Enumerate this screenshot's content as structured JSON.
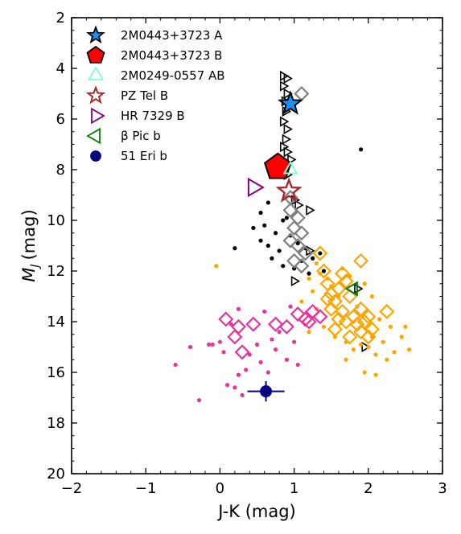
{
  "chart_data": {
    "type": "scatter",
    "xlabel": "J-K (mag)",
    "ylabel_main": "M",
    "ylabel_sub": "J",
    "ylabel_unit": "(mag)",
    "xlim": [
      -2,
      3
    ],
    "ylim": [
      20,
      2
    ],
    "xticks": [
      -2,
      -1,
      0,
      1,
      2,
      3
    ],
    "xtick_labels": [
      "−2",
      "−1",
      "0",
      "1",
      "2",
      "3"
    ],
    "yticks": [
      2,
      4,
      6,
      8,
      10,
      12,
      14,
      16,
      18,
      20
    ],
    "ytick_labels": [
      "2",
      "4",
      "6",
      "8",
      "10",
      "12",
      "14",
      "16",
      "18",
      "20"
    ],
    "legend_position": "top-left",
    "legend": [
      {
        "label": "2M0443+3723 A",
        "marker": "star",
        "color": "#1f8fff",
        "edge": "#000000"
      },
      {
        "label": "2M0443+3723 B",
        "marker": "pentagon",
        "color": "#ff0000",
        "edge": "#000000"
      },
      {
        "label": "2M0249-0557 AB",
        "marker": "triangle-up",
        "color": "none",
        "edge": "#7fffd4"
      },
      {
        "label": "PZ Tel B",
        "marker": "star",
        "color": "none",
        "edge": "#a52a2a"
      },
      {
        "label": "HR 7329 B",
        "marker": "triangle-right",
        "color": "none",
        "edge": "#800080"
      },
      {
        "label": "β Pic b",
        "marker": "triangle-left",
        "color": "none",
        "edge": "#008000"
      },
      {
        "label": "51 Eri b",
        "marker": "circle",
        "color": "#000080",
        "edge": "#000080"
      }
    ],
    "highlighted": [
      {
        "name": "2M0443+3723 A",
        "x": 0.95,
        "y": 5.4
      },
      {
        "name": "2M0443+3723 B",
        "x": 0.78,
        "y": 7.9
      },
      {
        "name": "2M0249-0557 AB",
        "x": 0.95,
        "y": 8.0
      },
      {
        "name": "PZ Tel B",
        "x": 0.93,
        "y": 8.85
      },
      {
        "name": "HR 7329 B",
        "x": 0.45,
        "y": 8.7
      },
      {
        "name": "β Pic b",
        "x": 1.8,
        "y": 12.7
      },
      {
        "name": "51 Eri b",
        "x": 0.62,
        "y": 16.75,
        "xerr": 0.25,
        "yerr": 0.4
      }
    ],
    "series": [
      {
        "name": "",
        "marker": "triangle-right",
        "color": "#000000",
        "points": [
          [
            0.85,
            4.3
          ],
          [
            0.9,
            4.4
          ],
          [
            0.85,
            4.7
          ],
          [
            0.9,
            5.0
          ],
          [
            0.87,
            5.3
          ],
          [
            0.88,
            5.7
          ],
          [
            0.85,
            6.1
          ],
          [
            0.9,
            6.4
          ],
          [
            0.88,
            6.8
          ],
          [
            0.85,
            7.1
          ],
          [
            0.9,
            7.3
          ],
          [
            0.95,
            7.6
          ],
          [
            0.85,
            7.9
          ],
          [
            0.9,
            8.2
          ],
          [
            1.0,
            9.2
          ],
          [
            1.05,
            9.4
          ],
          [
            1.2,
            9.6
          ],
          [
            1.85,
            12.7
          ],
          [
            1.95,
            15.0
          ],
          [
            1.0,
            12.4
          ],
          [
            1.2,
            11.2
          ]
        ]
      },
      {
        "name": "",
        "marker": "dot",
        "color": "#000000",
        "points": [
          [
            0.45,
            10.3
          ],
          [
            0.55,
            10.8
          ],
          [
            0.6,
            10.2
          ],
          [
            0.65,
            11.0
          ],
          [
            0.7,
            11.5
          ],
          [
            0.75,
            10.5
          ],
          [
            0.8,
            11.2
          ],
          [
            0.85,
            10.0
          ],
          [
            0.85,
            11.8
          ],
          [
            0.9,
            9.9
          ],
          [
            0.95,
            10.6
          ],
          [
            1.0,
            11.9
          ],
          [
            1.05,
            10.9
          ],
          [
            1.1,
            11.6
          ],
          [
            1.15,
            11.1
          ],
          [
            1.2,
            12.1
          ],
          [
            1.25,
            11.5
          ],
          [
            1.35,
            11.3
          ],
          [
            1.4,
            12.0
          ],
          [
            0.2,
            11.1
          ],
          [
            0.55,
            9.7
          ],
          [
            0.65,
            9.3
          ],
          [
            1.9,
            7.2
          ]
        ]
      },
      {
        "name": "",
        "marker": "diamond-open",
        "color": "#808080",
        "points": [
          [
            1.1,
            5.0
          ],
          [
            0.95,
            9.1
          ],
          [
            0.95,
            9.6
          ],
          [
            1.05,
            9.9
          ],
          [
            1.0,
            10.3
          ],
          [
            1.1,
            10.5
          ],
          [
            0.95,
            10.8
          ],
          [
            1.05,
            11.0
          ],
          [
            1.15,
            11.3
          ],
          [
            1.0,
            11.6
          ],
          [
            1.1,
            11.8
          ]
        ]
      },
      {
        "name": "",
        "marker": "diamond-open",
        "color": "#ffa500",
        "points": [
          [
            1.35,
            11.3
          ],
          [
            1.4,
            12.0
          ],
          [
            1.45,
            12.5
          ],
          [
            1.5,
            12.9
          ],
          [
            1.55,
            13.2
          ],
          [
            1.6,
            12.7
          ],
          [
            1.65,
            13.6
          ],
          [
            1.7,
            12.4
          ],
          [
            1.7,
            14.0
          ],
          [
            1.75,
            13.0
          ],
          [
            1.8,
            13.8
          ],
          [
            1.85,
            14.1
          ],
          [
            1.9,
            13.5
          ],
          [
            1.9,
            14.4
          ],
          [
            1.95,
            14.0
          ],
          [
            2.0,
            13.8
          ],
          [
            2.05,
            14.3
          ],
          [
            2.25,
            13.6
          ],
          [
            1.9,
            11.6
          ],
          [
            1.6,
            13.9
          ],
          [
            1.55,
            14.3
          ],
          [
            1.45,
            13.1
          ],
          [
            1.65,
            12.1
          ],
          [
            1.75,
            14.6
          ],
          [
            2.0,
            14.6
          ],
          [
            1.5,
            13.5
          ]
        ]
      },
      {
        "name": "",
        "marker": "dot",
        "color": "#ffa500",
        "points": [
          [
            -0.05,
            11.8
          ],
          [
            1.1,
            13.2
          ],
          [
            1.2,
            12.3
          ],
          [
            1.25,
            12.8
          ],
          [
            1.3,
            13.5
          ],
          [
            1.35,
            12.1
          ],
          [
            1.4,
            14.2
          ],
          [
            1.5,
            12.6
          ],
          [
            1.55,
            14.6
          ],
          [
            1.6,
            13.0
          ],
          [
            1.7,
            14.8
          ],
          [
            1.75,
            12.2
          ],
          [
            1.8,
            15.1
          ],
          [
            1.85,
            13.4
          ],
          [
            1.9,
            14.9
          ],
          [
            2.0,
            15.0
          ],
          [
            2.05,
            14.6
          ],
          [
            2.1,
            15.3
          ],
          [
            2.15,
            13.9
          ],
          [
            2.2,
            14.8
          ],
          [
            2.3,
            14.2
          ],
          [
            2.35,
            15.2
          ],
          [
            2.45,
            14.6
          ],
          [
            2.5,
            14.2
          ],
          [
            2.55,
            15.1
          ],
          [
            2.1,
            16.1
          ],
          [
            1.95,
            16.0
          ],
          [
            1.2,
            14.4
          ],
          [
            1.3,
            11.7
          ],
          [
            1.45,
            12.3
          ],
          [
            1.65,
            11.9
          ],
          [
            1.95,
            12.5
          ],
          [
            2.05,
            13.0
          ],
          [
            1.7,
            15.5
          ],
          [
            2.25,
            15.5
          ]
        ]
      },
      {
        "name": "",
        "marker": "diamond-open",
        "color": "#e5359c",
        "points": [
          [
            0.08,
            13.9
          ],
          [
            0.2,
            14.6
          ],
          [
            0.25,
            14.2
          ],
          [
            0.3,
            15.2
          ],
          [
            0.45,
            14.1
          ],
          [
            0.75,
            14.1
          ],
          [
            0.9,
            14.2
          ],
          [
            1.05,
            13.7
          ],
          [
            1.15,
            13.9
          ],
          [
            1.2,
            14.0
          ],
          [
            1.35,
            13.8
          ],
          [
            1.25,
            13.6
          ]
        ]
      },
      {
        "name": "",
        "marker": "dot",
        "color": "#e5359c",
        "points": [
          [
            -0.6,
            15.7
          ],
          [
            -0.4,
            15.0
          ],
          [
            -0.28,
            17.1
          ],
          [
            -0.1,
            14.9
          ],
          [
            0.0,
            14.8
          ],
          [
            0.05,
            15.2
          ],
          [
            0.1,
            16.5
          ],
          [
            0.2,
            16.6
          ],
          [
            0.25,
            16.1
          ],
          [
            0.3,
            16.9
          ],
          [
            0.35,
            15.9
          ],
          [
            0.4,
            15.3
          ],
          [
            0.5,
            14.9
          ],
          [
            0.55,
            15.6
          ],
          [
            0.6,
            13.6
          ],
          [
            0.65,
            16.0
          ],
          [
            0.7,
            14.7
          ],
          [
            0.75,
            15.1
          ],
          [
            0.8,
            14.4
          ],
          [
            0.9,
            15.5
          ],
          [
            1.0,
            14.8
          ],
          [
            1.05,
            15.7
          ],
          [
            0.25,
            13.5
          ],
          [
            0.95,
            13.4
          ],
          [
            0.15,
            14.1
          ],
          [
            -0.15,
            14.9
          ]
        ]
      }
    ]
  }
}
